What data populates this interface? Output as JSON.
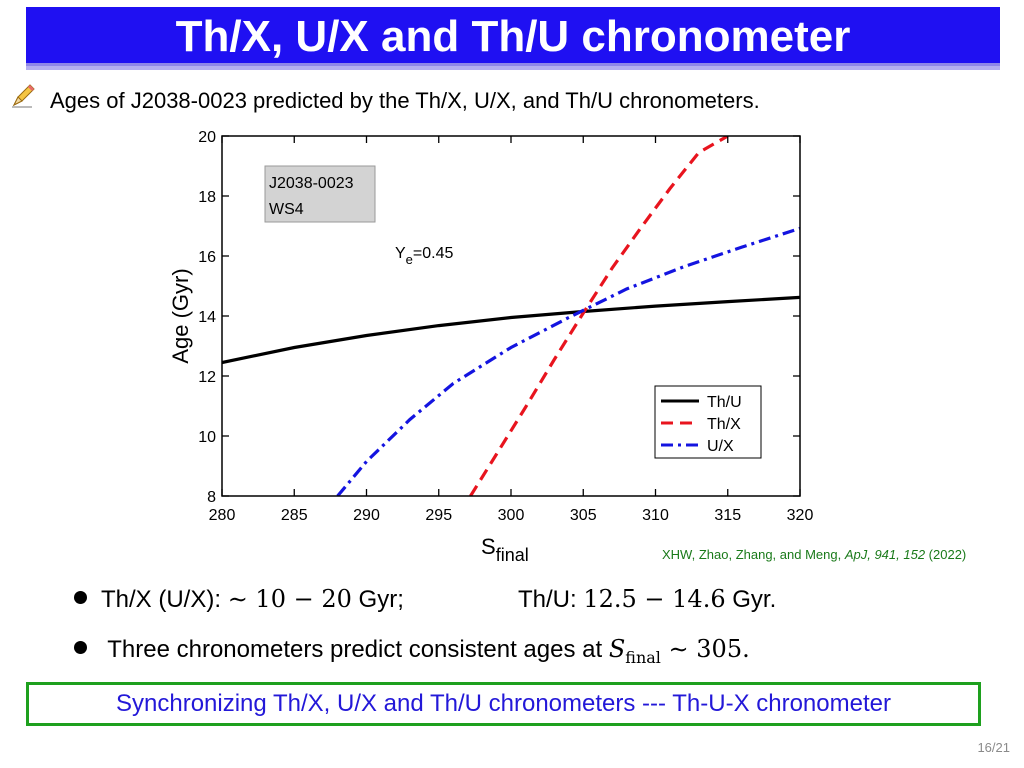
{
  "slide": {
    "title": "Th/X, U/X and Th/U chronometer",
    "subtitle": "Ages of J2038-0023 predicted by the Th/X, U/X, and Th/U chronometers.",
    "citation": {
      "authors": "XHW, Zhao, Zhang, and Meng, ",
      "journal": "ApJ, 941, 152",
      "year": " (2022)"
    },
    "bullet1": {
      "label_a": "Th/X (U/X): ",
      "range_a": "∼ 10 − 20",
      "unit_a": " Gyr;",
      "label_b": "Th/U: ",
      "range_b": "12.5 − 14.6",
      "unit_b": " Gyr."
    },
    "bullet2": {
      "text": "Three chronometers predict consistent ages at ",
      "symbol": "S",
      "subscript": "final",
      "value": " ∼ 305."
    },
    "box_text": "Synchronizing Th/X, U/X and Th/U chronometers --- Th-U-X chronometer",
    "page_number": "16/21",
    "icons": {
      "pencil": "pencil-icon"
    }
  },
  "chart_data": {
    "type": "line",
    "xlabel": "S",
    "xlabel_sub": "final",
    "ylabel": "Age (Gyr)",
    "xlim": [
      280,
      320
    ],
    "ylim": [
      8,
      20
    ],
    "xticks": [
      280,
      285,
      290,
      295,
      300,
      305,
      310,
      315,
      320
    ],
    "yticks": [
      8,
      10,
      12,
      14,
      16,
      18,
      20
    ],
    "grid": false,
    "legend_position": "bottom-right",
    "annotation_box": [
      "J2038-0023",
      "WS4"
    ],
    "annotation_ye": {
      "text": "Y",
      "sub": "e",
      "value": "=0.45"
    },
    "series": [
      {
        "name": "Th/U",
        "color": "#000000",
        "style": "solid",
        "x": [
          280,
          285,
          290,
          295,
          300,
          305,
          310,
          315,
          320
        ],
        "y": [
          12.45,
          12.95,
          13.35,
          13.68,
          13.95,
          14.15,
          14.33,
          14.48,
          14.62
        ]
      },
      {
        "name": "Th/X",
        "color": "#e8141e",
        "style": "dashed",
        "x": [
          297.2,
          299,
          301,
          303,
          305,
          307,
          309,
          311,
          313,
          315
        ],
        "y": [
          8.0,
          9.4,
          10.95,
          12.55,
          14.1,
          15.6,
          16.95,
          18.25,
          19.45,
          20.0
        ]
      },
      {
        "name": "U/X",
        "color": "#1414e0",
        "style": "dashdot",
        "x": [
          288,
          290,
          293,
          296,
          300,
          304,
          308,
          312,
          316,
          320
        ],
        "y": [
          8.0,
          9.15,
          10.55,
          11.75,
          12.95,
          13.95,
          14.9,
          15.65,
          16.3,
          16.92
        ]
      }
    ]
  }
}
